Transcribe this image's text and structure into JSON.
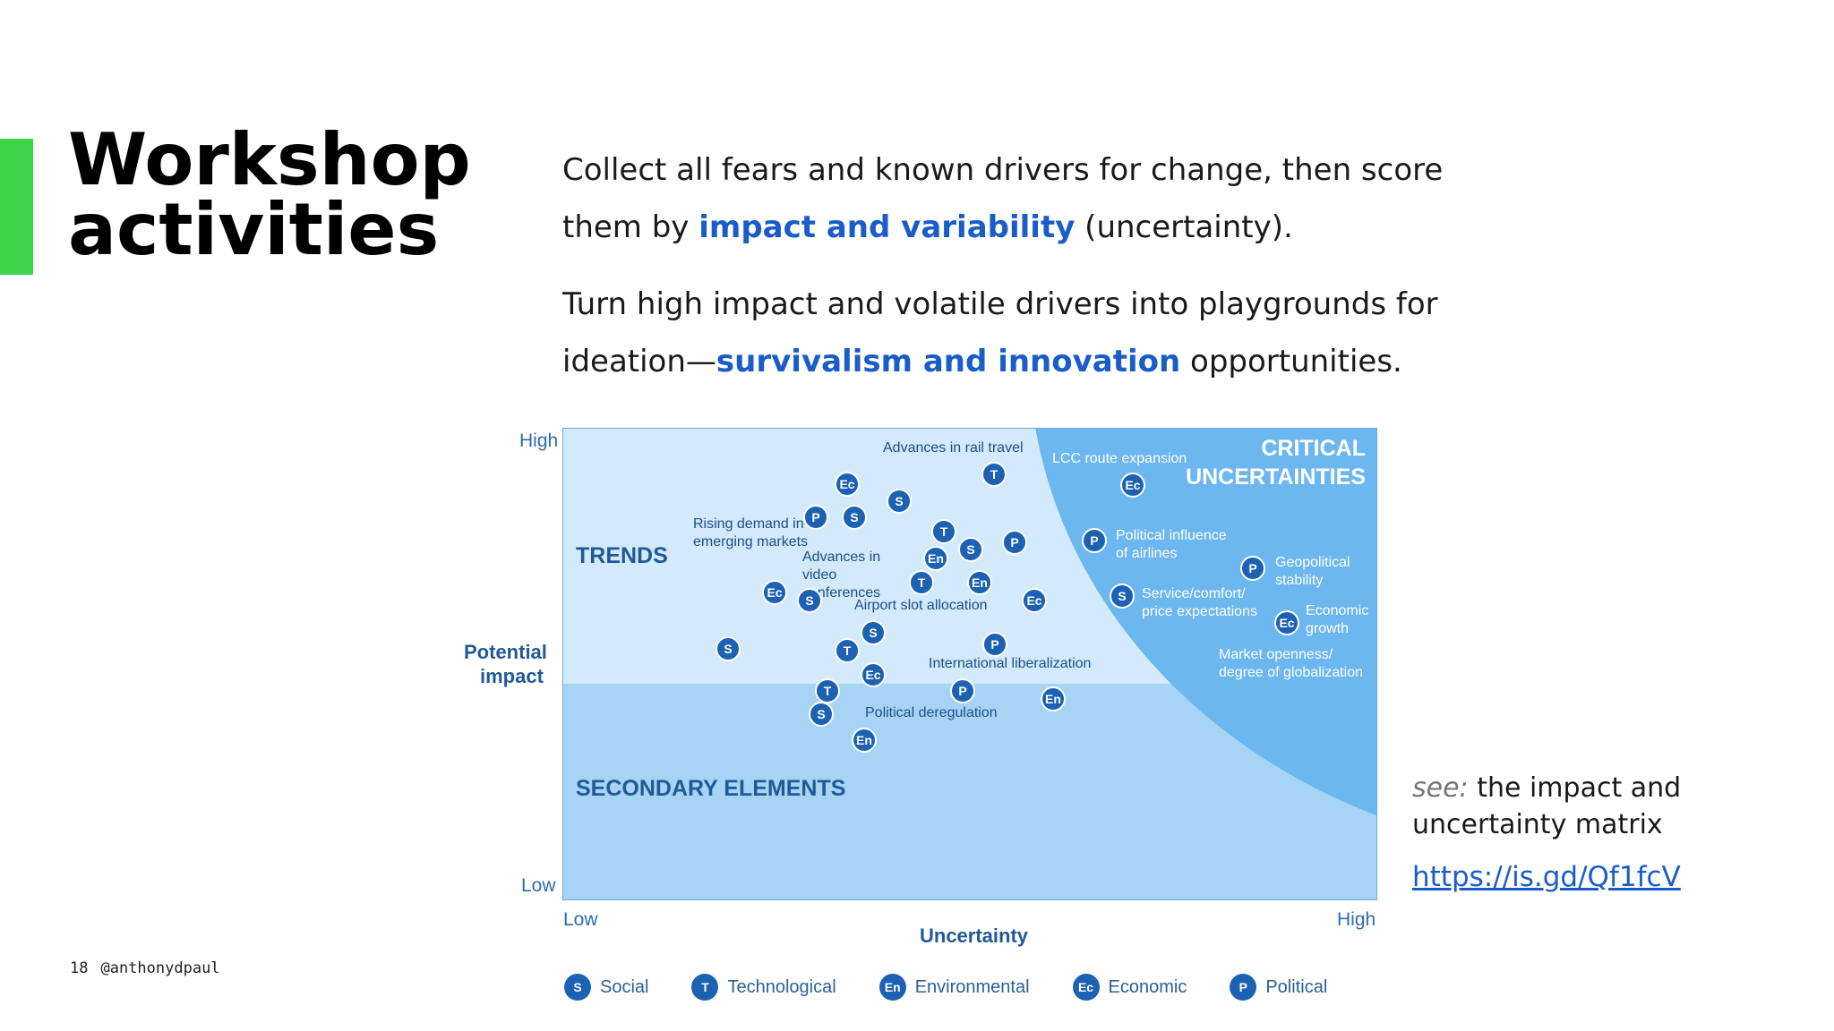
{
  "slide": {
    "title_line1": "Workshop",
    "title_line2": "activities",
    "para1": {
      "pre": "Collect all fears and known drivers for change, then score them by ",
      "hl": "impact and variability",
      "post": " (uncertainty)."
    },
    "para2": {
      "pre": "Turn high impact and volatile drivers into playgrounds for ideation—",
      "hl": "survivalism and innovation",
      "post": " opportunities."
    },
    "see_prefix": "see:",
    "see_text": " the impact and uncertainty matrix",
    "link": "https://is.gd/Qf1fcV",
    "page_number": "18",
    "handle": "@anthonydpaul",
    "accent_color": "#3fd447",
    "highlight_color": "#1a5cc8"
  },
  "matrix": {
    "zones": {
      "trends": "TRENDS",
      "secondary": "SECONDARY ELEMENTS",
      "critical_line1": "CRITICAL",
      "critical_line2": "UNCERTAINTIES"
    },
    "axes": {
      "y_title_line1": "Potential",
      "y_title_line2": "impact",
      "y_high": "High",
      "y_low": "Low",
      "x_title": "Uncertainty",
      "x_low": "Low",
      "x_high": "High"
    },
    "labels": [
      "Advances in rail travel",
      "LCC route expansion",
      "Rising demand in emerging markets",
      "Advances in video conferences",
      "Airport slot allocation",
      "Political influence of airlines",
      "Geopolitical stability",
      "Service/comfort/ price expectations",
      "Economic growth",
      "Market openness/ degree of globalization",
      "International liberalization",
      "Political deregulation"
    ],
    "badge_texts": [
      "T",
      "Ec",
      "Ec",
      "S",
      "P",
      "S",
      "T",
      "S",
      "En",
      "P",
      "P",
      "Ec",
      "S",
      "T",
      "En",
      "Ec",
      "S",
      "Ec",
      "P",
      "S",
      "S",
      "P",
      "T",
      "Ec",
      "T",
      "P",
      "S",
      "En",
      "En"
    ],
    "legend": [
      {
        "code": "S",
        "label": "Social"
      },
      {
        "code": "T",
        "label": "Technological"
      },
      {
        "code": "En",
        "label": "Environmental"
      },
      {
        "code": "Ec",
        "label": "Economic"
      },
      {
        "code": "P",
        "label": "Political"
      }
    ],
    "colors": {
      "trends_zone": "#d2eafb",
      "secondary_zone": "#a7d4f4",
      "critical_zone": "#6cb7ef",
      "badge": "#1c61b2"
    }
  }
}
